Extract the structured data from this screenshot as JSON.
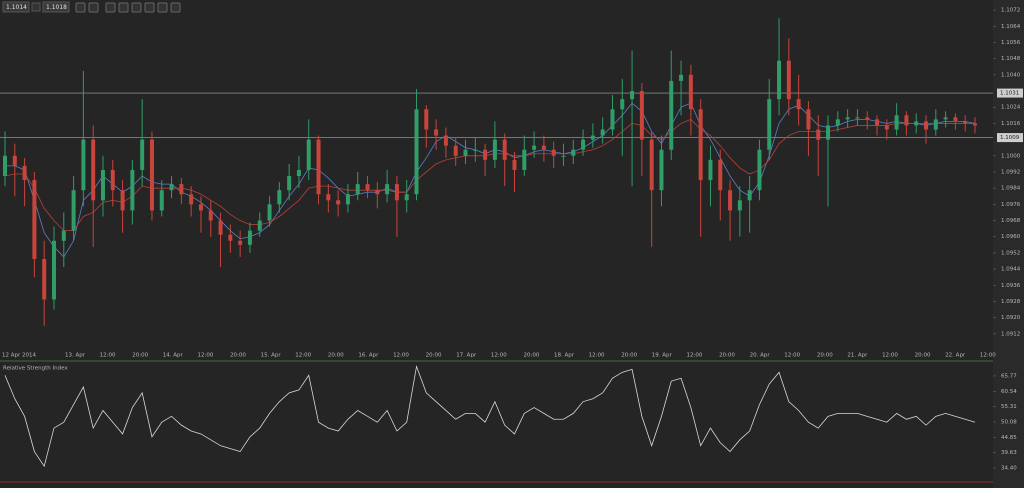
{
  "toolbar": {
    "bid": "1.1014",
    "ask": "1.1018"
  },
  "chart_data": [
    {
      "type": "candlestick",
      "x_labels": [
        "12 Apr 2014",
        "13. Apr",
        "12:00",
        "20:00",
        "14. Apr",
        "12:00",
        "20:00",
        "15. Apr",
        "12:00",
        "20:00",
        "16. Apr",
        "12:00",
        "20:00",
        "17. Apr",
        "12:00",
        "20:00",
        "18. Apr",
        "12:00",
        "20:00",
        "19. Apr",
        "12:00",
        "20:00",
        "20. Apr",
        "12:00",
        "20:00",
        "21. Apr",
        "12:00",
        "20:00",
        "22. Apr",
        "12:00"
      ],
      "open": [
        1.099,
        1.1,
        1.0995,
        1.0988,
        1.0949,
        1.0929,
        1.0958,
        1.0963,
        1.0983,
        1.1008,
        1.0978,
        1.0993,
        1.0983,
        1.0973,
        1.0993,
        1.1008,
        1.0973,
        1.0983,
        1.0986,
        1.0981,
        1.0976,
        1.0973,
        1.0968,
        1.0961,
        1.0958,
        1.0956,
        1.0963,
        1.0968,
        1.0976,
        1.0983,
        1.099,
        1.0993,
        1.1008,
        1.0981,
        1.0978,
        1.0976,
        1.0981,
        1.0986,
        1.0983,
        1.0981,
        1.0986,
        1.0978,
        1.0981,
        1.1023,
        1.1013,
        1.101,
        1.1005,
        1.1,
        1.1003,
        1.1003,
        1.0998,
        1.1008,
        1.0998,
        1.0993,
        1.1003,
        1.1005,
        1.1003,
        1.1,
        1.1,
        1.1003,
        1.1008,
        1.101,
        1.1013,
        1.1023,
        1.1028,
        1.1032,
        1.1008,
        1.0983,
        1.1003,
        1.1037,
        1.104,
        1.1023,
        1.0988,
        1.0998,
        1.0983,
        1.0973,
        1.0978,
        1.0983,
        1.1003,
        1.1028,
        1.1047,
        1.1028,
        1.1023,
        1.1013,
        1.1008,
        1.1015,
        1.1018,
        1.1019,
        1.1019,
        1.1018,
        1.1015,
        1.1013,
        1.102,
        1.1015,
        1.1017,
        1.1013,
        1.1018,
        1.1019,
        1.1017,
        1.1016
      ],
      "high": [
        1.1012,
        1.1006,
        1.0999,
        1.0992,
        1.0958,
        1.0965,
        1.0972,
        1.099,
        1.1042,
        1.1015,
        1.1,
        1.0998,
        1.0988,
        1.0998,
        1.1028,
        1.1012,
        1.0988,
        1.099,
        1.0989,
        1.0985,
        1.098,
        1.0978,
        1.0972,
        1.0966,
        1.0963,
        1.0967,
        1.0972,
        1.098,
        1.0987,
        1.0996,
        1.1,
        1.1018,
        1.101,
        1.0986,
        1.0983,
        1.0986,
        1.0992,
        1.099,
        1.0987,
        1.0993,
        1.099,
        1.0988,
        1.1033,
        1.1025,
        1.1018,
        1.1014,
        1.1009,
        1.1008,
        1.1009,
        1.1006,
        1.1017,
        1.1011,
        1.1002,
        1.101,
        1.1012,
        1.101,
        1.1007,
        1.1006,
        1.1008,
        1.1013,
        1.1016,
        1.1019,
        1.103,
        1.1038,
        1.1052,
        1.1036,
        1.1012,
        1.101,
        1.1052,
        1.1047,
        1.1045,
        1.1028,
        1.1005,
        1.1003,
        1.0988,
        1.0985,
        1.099,
        1.1008,
        1.1038,
        1.1068,
        1.1058,
        1.104,
        1.1027,
        1.102,
        1.102,
        1.1022,
        1.1023,
        1.1023,
        1.1022,
        1.102,
        1.1018,
        1.1026,
        1.1022,
        1.1021,
        1.102,
        1.1023,
        1.1022,
        1.1021,
        1.102,
        1.1019
      ],
      "low": [
        1.0985,
        1.098,
        1.0975,
        1.094,
        1.0916,
        1.0924,
        1.0945,
        1.0958,
        1.0975,
        1.0955,
        1.097,
        1.0975,
        1.0962,
        1.0966,
        1.0985,
        1.0968,
        1.097,
        1.0979,
        1.0976,
        1.097,
        1.0962,
        1.096,
        1.0945,
        1.0952,
        1.095,
        1.0952,
        1.096,
        1.0965,
        1.0972,
        1.0978,
        1.0984,
        1.0988,
        1.0976,
        1.0972,
        1.097,
        1.0972,
        1.0978,
        1.0979,
        1.0974,
        1.0977,
        1.096,
        1.0972,
        1.0978,
        1.1004,
        1.1003,
        1.0999,
        1.0995,
        1.0996,
        1.0997,
        1.099,
        1.0994,
        1.0985,
        1.0982,
        1.099,
        1.0999,
        1.0997,
        1.0994,
        1.0995,
        1.0996,
        1.1,
        1.1004,
        1.1006,
        1.101,
        1.1,
        1.0985,
        1.099,
        1.0955,
        1.0975,
        1.0998,
        1.102,
        1.101,
        1.096,
        1.0975,
        1.0968,
        1.0958,
        1.096,
        1.0962,
        1.0978,
        1.0998,
        1.102,
        1.102,
        1.1015,
        1.1,
        1.099,
        1.0975,
        1.1012,
        1.1014,
        1.1015,
        1.1013,
        1.101,
        1.1008,
        1.101,
        1.101,
        1.1011,
        1.1006,
        1.101,
        1.1014,
        1.1013,
        1.1012,
        1.1011
      ],
      "close": [
        1.1,
        1.0995,
        1.0988,
        1.0949,
        1.0929,
        1.0958,
        1.0963,
        1.0983,
        1.1008,
        1.0978,
        1.0993,
        1.0983,
        1.0973,
        1.0993,
        1.1008,
        1.0973,
        1.0983,
        1.0986,
        1.0981,
        1.0976,
        1.0973,
        1.0968,
        1.0961,
        1.0958,
        1.0956,
        1.0963,
        1.0968,
        1.0976,
        1.0983,
        1.099,
        1.0993,
        1.1008,
        1.0981,
        1.0978,
        1.0976,
        1.0981,
        1.0986,
        1.0983,
        1.0981,
        1.0986,
        1.0978,
        1.0981,
        1.1023,
        1.1013,
        1.101,
        1.1005,
        1.1,
        1.1003,
        1.1003,
        1.0998,
        1.1008,
        1.0998,
        1.0993,
        1.1003,
        1.1005,
        1.1003,
        1.1,
        1.1,
        1.1003,
        1.1008,
        1.101,
        1.1013,
        1.1023,
        1.1028,
        1.1032,
        1.1008,
        1.0983,
        1.1003,
        1.1037,
        1.104,
        1.1023,
        1.0988,
        1.0998,
        1.0983,
        1.0973,
        1.0978,
        1.0983,
        1.1003,
        1.1028,
        1.1047,
        1.1028,
        1.1023,
        1.1013,
        1.1008,
        1.1015,
        1.1018,
        1.1019,
        1.1019,
        1.1018,
        1.1015,
        1.1013,
        1.102,
        1.1015,
        1.1017,
        1.1013,
        1.1018,
        1.1019,
        1.1017,
        1.1016,
        1.1015
      ],
      "up_color": "#2f9e68",
      "down_color": "#c9443b",
      "overlays": [
        {
          "color": "#5b7fc9",
          "values": [
            1.0995,
            1.0995,
            1.0993,
            1.0978,
            1.0962,
            1.0955,
            1.095,
            1.0958,
            1.0978,
            1.0983,
            1.099,
            1.0986,
            1.0982,
            1.0985,
            1.099,
            1.0987,
            1.0986,
            1.0986,
            1.0982,
            1.098,
            1.0977,
            1.0973,
            1.0968,
            1.0963,
            1.0959,
            1.096,
            1.0962,
            1.0966,
            1.0973,
            1.098,
            1.0986,
            1.0994,
            1.0993,
            1.0989,
            1.0984,
            1.098,
            1.0981,
            1.0982,
            1.0982,
            1.0984,
            1.0982,
            1.0982,
            1.0992,
            1.0999,
            1.1007,
            1.101,
            1.1007,
            1.1004,
            1.1003,
            1.1001,
            1.1003,
            1.1002,
            1.0999,
            1.1,
            1.1002,
            1.1003,
            1.1002,
            1.1001,
            1.1002,
            1.1004,
            1.1007,
            1.101,
            1.1015,
            1.102,
            1.1026,
            1.1022,
            1.1012,
            1.1006,
            1.1015,
            1.1024,
            1.1026,
            1.1015,
            1.1008,
            1.0999,
            1.099,
            1.0983,
            1.098,
            1.0987,
            1.1,
            1.1016,
            1.1023,
            1.1025,
            1.102,
            1.1015,
            1.1014,
            1.1015,
            1.1017,
            1.1018,
            1.1018,
            1.1017,
            1.1016,
            1.1017,
            1.1016,
            1.1016,
            1.1015,
            1.1016,
            1.1017,
            1.1017,
            1.1017,
            1.1016
          ]
        },
        {
          "color": "#b8403a",
          "values": [
            1.099,
            1.0991,
            1.0991,
            1.0984,
            1.0974,
            1.0968,
            1.0963,
            1.0963,
            1.097,
            1.0972,
            1.0977,
            1.0978,
            1.0977,
            1.098,
            1.0985,
            1.0984,
            1.0984,
            1.0984,
            1.0984,
            1.0983,
            1.0981,
            1.0978,
            1.0975,
            1.0971,
            1.0968,
            1.0966,
            1.0966,
            1.0967,
            1.097,
            1.0974,
            1.0978,
            1.0984,
            1.0985,
            1.0985,
            1.0984,
            1.0983,
            1.0983,
            1.0983,
            1.0983,
            1.0983,
            1.0982,
            1.0982,
            1.0988,
            1.0992,
            1.0996,
            1.0998,
            1.0999,
            1.1,
            1.1,
            1.1,
            1.1001,
            1.1001,
            1.1,
            1.1,
            1.1001,
            1.1001,
            1.1001,
            1.1001,
            1.1001,
            1.1002,
            1.1003,
            1.1005,
            1.1008,
            1.1012,
            1.1016,
            1.1015,
            1.101,
            1.1008,
            1.1012,
            1.1016,
            1.1018,
            1.1013,
            1.101,
            1.1005,
            1.0999,
            1.0994,
            1.0991,
            1.0993,
            1.0998,
            1.1006,
            1.101,
            1.1012,
            1.1012,
            1.1012,
            1.1012,
            1.1013,
            1.1014,
            1.1015,
            1.1015,
            1.1015,
            1.1015,
            1.1016,
            1.1016,
            1.1016,
            1.1016,
            1.1016,
            1.1016,
            1.1016,
            1.1016,
            1.1016
          ]
        }
      ],
      "levels": [
        1.1031,
        1.1009
      ],
      "ylim": [
        1.0905,
        1.1077
      ],
      "yticks": [
        1.1072,
        1.1064,
        1.1056,
        1.1048,
        {
          "value": 1.104,
          "label": "1.1040"
        },
        1.1024,
        1.1016,
        {
          "value": 1.1,
          "label": "1.1000"
        },
        1.0992,
        1.0984,
        1.0976,
        1.0968,
        {
          "value": 1.096,
          "label": "1.0960"
        },
        1.0952,
        1.0944,
        1.0936,
        1.0928,
        {
          "value": 1.092,
          "label": "1.0920"
        },
        1.0912
      ]
    },
    {
      "type": "line",
      "title": "Relative Strength Index",
      "color": "#d8d8d8",
      "values": [
        66,
        58,
        52,
        40,
        35,
        48,
        50,
        56,
        62,
        48,
        54,
        50,
        46,
        55,
        60,
        45,
        50,
        52,
        49,
        47,
        46,
        44,
        42,
        41,
        40,
        45,
        48,
        53,
        57,
        60,
        61,
        66,
        50,
        48,
        47,
        51,
        54,
        52,
        50,
        54,
        47,
        50,
        69,
        60,
        57,
        54,
        51,
        53,
        53,
        50,
        57,
        49,
        46,
        53,
        55,
        53,
        51,
        51,
        53,
        57,
        58,
        60,
        65,
        67,
        68,
        52,
        42,
        52,
        64,
        65,
        55,
        42,
        48,
        43,
        40,
        44,
        47,
        56,
        63,
        67,
        57,
        54,
        50,
        48,
        52,
        53,
        53,
        53,
        52,
        51,
        50,
        53,
        51,
        52,
        49,
        52,
        53,
        52,
        51,
        50
      ],
      "ylim": [
        30.3,
        69.5
      ],
      "yticks": [
        65.77,
        60.54,
        55.31,
        50.08,
        44.85,
        39.63,
        {
          "value": 34.4,
          "label": "34.40"
        }
      ]
    }
  ]
}
